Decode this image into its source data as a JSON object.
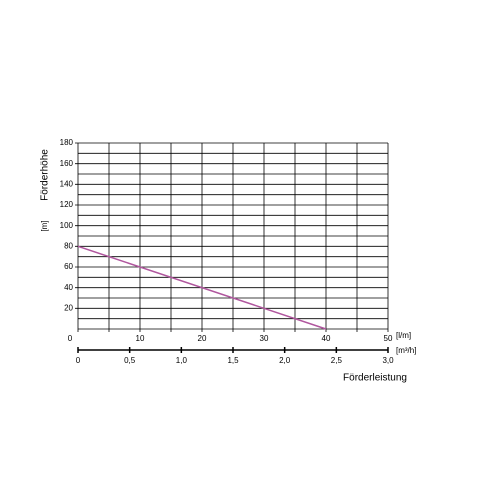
{
  "chart_data": {
    "type": "line",
    "y_label": "Förderhöhe",
    "y_unit": "[m]",
    "x_label": "Förderleistung",
    "x_unit": "[l/m]",
    "x2_unit": "[m³/h]",
    "x": [
      0,
      40
    ],
    "values": [
      80,
      0
    ],
    "color": "#b0569e",
    "xlim": [
      0,
      50
    ],
    "xticks": [
      0,
      10,
      20,
      30,
      40,
      50
    ],
    "xminor_ticks": [
      5,
      15,
      25,
      35,
      45
    ],
    "ylim": [
      0,
      180
    ],
    "yticks": [
      20,
      40,
      60,
      80,
      100,
      120,
      140,
      160,
      180
    ],
    "yminor_ticks": [
      0,
      10,
      30,
      50,
      70,
      90,
      110,
      130,
      150,
      170
    ],
    "x2lim": [
      0,
      3
    ],
    "x2ticks": [
      0,
      {
        "value": 0.5,
        "label": "0,5"
      },
      {
        "value": 1,
        "label": "1,0"
      },
      {
        "value": 1.5,
        "label": "1,5"
      },
      {
        "value": 2,
        "label": "2,0"
      },
      {
        "value": 2.5,
        "label": "2,5"
      },
      {
        "value": 3,
        "label": "3,0"
      }
    ],
    "grid": true
  }
}
